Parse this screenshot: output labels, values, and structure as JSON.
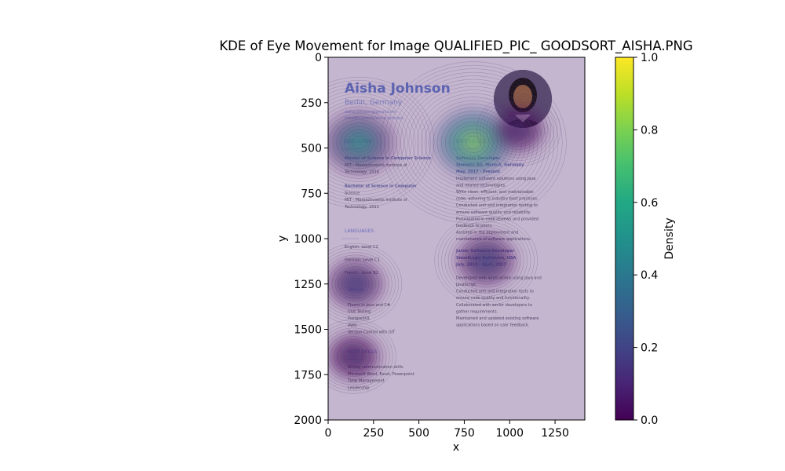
{
  "chart_data": {
    "type": "heatmap",
    "title": "KDE of Eye Movement for Image QUALIFIED_PIC_ GOODSORT_AISHA.PNG",
    "xlabel": "x",
    "ylabel": "y",
    "xlim": [
      0,
      1414
    ],
    "ylim": [
      2000,
      0
    ],
    "x_ticks": [
      0,
      250,
      500,
      750,
      1000,
      1250
    ],
    "y_ticks": [
      0,
      250,
      500,
      750,
      1000,
      1250,
      1500,
      1750,
      2000
    ],
    "colorbar": {
      "label": "Density",
      "range": [
        0,
        1
      ],
      "ticks": [
        0.0,
        0.2,
        0.4,
        0.6,
        0.8,
        1.0
      ],
      "colormap": "viridis"
    },
    "density_peaks": [
      {
        "x": 170,
        "y": 470,
        "value": 0.75
      },
      {
        "x": 800,
        "y": 470,
        "value": 1.0
      },
      {
        "x": 870,
        "y": 1120,
        "value": 0.45
      },
      {
        "x": 150,
        "y": 1250,
        "value": 0.35
      },
      {
        "x": 140,
        "y": 1650,
        "value": 0.3
      },
      {
        "x": 1050,
        "y": 400,
        "value": 0.25
      }
    ],
    "background_image": {
      "name": "Aisha Johnson",
      "location": "Berlin, Germany",
      "contact": [
        "aisha.johnson@gmail.com",
        "linkedin.com/in/aisha-johnson"
      ],
      "sections": {
        "education": {
          "heading": "EDUCATION",
          "lines": [
            "Master of Science in Computer Science",
            "MIT - Massachusetts Institute of",
            "Technology, 2014",
            "Bachelor of Science in Computer",
            "Science",
            "MIT - Massachusetts Institute of",
            "Technology, 2011"
          ]
        },
        "languages": {
          "heading": "LANGUAGES",
          "lines": [
            "English: Level C2",
            "German: Level C1",
            "French : Level B2"
          ]
        },
        "skills": {
          "heading": "SKILLS",
          "lines": [
            "Fluent in Java and C#",
            "Unit Testing",
            "PostgreSQL",
            "AWS",
            "Version Control with GIT"
          ]
        },
        "soft_skills": {
          "heading": "SOFT SKILLS",
          "lines": [
            "Strong communication skills",
            "Microsoft Word, Excel, Powerpoint",
            "Time Management",
            "Leadership"
          ]
        },
        "experience": {
          "heading": "EXPERIENCE",
          "lines": [
            "Software Developer",
            "Siemens AG, Munich, Germany",
            "May, 2017 - Present",
            "Implement software solutions using Java",
            "and related technologies.",
            "Write clean, efficient, and maintainable",
            "code, adhering to industry best practices.",
            "Conducted unit and integration testing to",
            "ensure software quality and reliability.",
            "Participated in code reviews and provided",
            "feedback to peers.",
            "Assisted in the deployment and",
            "maintenance of software applications.",
            "Junior Software Developer",
            "SmartLogic Baltimore, USA",
            "July, 2014 - April, 2017",
            "Developed web applications using Java and",
            "JavaScript.",
            "Conducted unit and integration tests to",
            "ensure code quality and functionality.",
            "Collaborated with senior developers to",
            "gather requirements.",
            "Maintained and updated existing software",
            "applications based on user feedback."
          ]
        }
      }
    }
  }
}
